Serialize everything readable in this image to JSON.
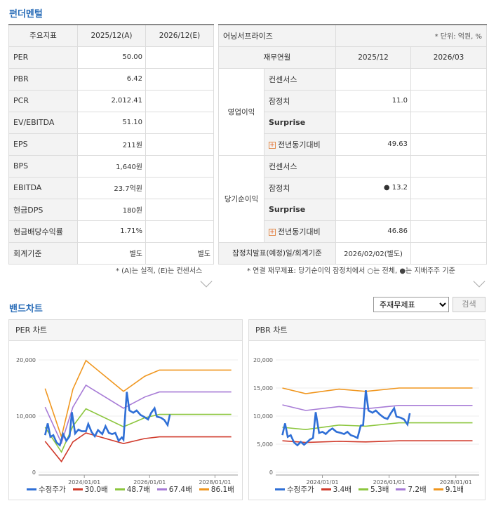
{
  "fundamental": {
    "title": "펀더멘털",
    "headers": [
      "주요지표",
      "2025/12(A)",
      "2026/12(E)"
    ],
    "rows": [
      {
        "label": "PER",
        "a": "50.00",
        "e": ""
      },
      {
        "label": "PBR",
        "a": "6.42",
        "e": ""
      },
      {
        "label": "PCR",
        "a": "2,012.41",
        "e": ""
      },
      {
        "label": "EV/EBITDA",
        "a": "51.10",
        "e": ""
      },
      {
        "label": "EPS",
        "a": "211원",
        "e": ""
      },
      {
        "label": "BPS",
        "a": "1,640원",
        "e": ""
      },
      {
        "label": "EBITDA",
        "a": "23.7억원",
        "e": ""
      },
      {
        "label": "현금DPS",
        "a": "180원",
        "e": ""
      },
      {
        "label": "현금배당수익률",
        "a": "1.71%",
        "e": ""
      },
      {
        "label": "회계기준",
        "a": "별도",
        "e": "별도"
      }
    ],
    "note": "* (A)는 실적, (E)는 컨센서스"
  },
  "earnings": {
    "title": "어닝서프라이즈",
    "unit": "* 단위: 억원, %",
    "headers": [
      "재무연월",
      "2025/12",
      "2026/03"
    ],
    "op_label": "영업이익",
    "net_label": "당기순이익",
    "op_rows": [
      {
        "label": "컨센서스",
        "v1": "",
        "v2": ""
      },
      {
        "label": "잠정치",
        "v1": "11.0",
        "v2": ""
      },
      {
        "label": "Surprise",
        "v1": "",
        "v2": ""
      },
      {
        "label": "전년동기대비",
        "v1": "49.63",
        "v2": ""
      }
    ],
    "net_rows": [
      {
        "label": "컨센서스",
        "v1": "",
        "v2": ""
      },
      {
        "label": "잠정치",
        "v1": "● 13.2",
        "v2": ""
      },
      {
        "label": "Surprise",
        "v1": "",
        "v2": ""
      },
      {
        "label": "전년동기대비",
        "v1": "46.86",
        "v2": ""
      }
    ],
    "footer_label": "잠정치발표(예정)일/회계기준",
    "footer_value": "2026/02/02(별도)",
    "note": "* 연결 재무제표: 당기순이익 잠정치에서 ○는 전체, ●는 지배주주 기준"
  },
  "band": {
    "title": "밴드차트",
    "select_value": "주재무제표",
    "search_label": "검색"
  },
  "chart_data": [
    {
      "type": "line",
      "title": "PER 차트",
      "ylim": [
        0,
        20000
      ],
      "yticks": [
        "0",
        "10,000",
        "20,000"
      ],
      "xticks": [
        "2024/01/01",
        "2026/01/01",
        "2028/01/01"
      ],
      "series": [
        {
          "name": "수정주가",
          "color": "#2f6fd6",
          "points": [
            [
              2022.8,
              6600
            ],
            [
              2022.88,
              8700
            ],
            [
              2022.96,
              6300
            ],
            [
              2023.05,
              6600
            ],
            [
              2023.15,
              5300
            ],
            [
              2023.25,
              4800
            ],
            [
              2023.35,
              6800
            ],
            [
              2023.45,
              5600
            ],
            [
              2023.55,
              6400
            ],
            [
              2023.62,
              10700
            ],
            [
              2023.72,
              6900
            ],
            [
              2023.82,
              7600
            ],
            [
              2023.92,
              7300
            ],
            [
              2024.05,
              7300
            ],
            [
              2024.12,
              8600
            ],
            [
              2024.22,
              7200
            ],
            [
              2024.32,
              6400
            ],
            [
              2024.42,
              7500
            ],
            [
              2024.55,
              6800
            ],
            [
              2024.65,
              8200
            ],
            [
              2024.75,
              7000
            ],
            [
              2024.85,
              6800
            ],
            [
              2024.95,
              7000
            ],
            [
              2025.05,
              5600
            ],
            [
              2025.15,
              6200
            ],
            [
              2025.2,
              5800
            ],
            [
              2025.25,
              10200
            ],
            [
              2025.3,
              14300
            ],
            [
              2025.38,
              11000
            ],
            [
              2025.5,
              10600
            ],
            [
              2025.6,
              11000
            ],
            [
              2025.72,
              10200
            ],
            [
              2025.85,
              9800
            ],
            [
              2025.95,
              9400
            ],
            [
              2026.05,
              10600
            ],
            [
              2026.15,
              11400
            ],
            [
              2026.22,
              9900
            ],
            [
              2026.35,
              9700
            ],
            [
              2026.45,
              9300
            ],
            [
              2026.55,
              8400
            ],
            [
              2026.62,
              10300
            ]
          ]
        },
        {
          "name": "30.0배",
          "color": "#d0392a",
          "points": [
            [
              2022.8,
              5500
            ],
            [
              2023.3,
              1900
            ],
            [
              2023.65,
              5400
            ],
            [
              2024.05,
              7000
            ],
            [
              2025.2,
              5100
            ],
            [
              2025.85,
              6000
            ],
            [
              2026.3,
              6300
            ],
            [
              2028.5,
              6300
            ]
          ]
        },
        {
          "name": "48.7배",
          "color": "#8cc63e",
          "points": [
            [
              2022.8,
              8000
            ],
            [
              2023.3,
              3600
            ],
            [
              2023.65,
              8200
            ],
            [
              2024.05,
              11300
            ],
            [
              2025.2,
              8100
            ],
            [
              2025.85,
              9700
            ],
            [
              2026.3,
              10300
            ],
            [
              2028.5,
              10300
            ]
          ]
        },
        {
          "name": "67.4배",
          "color": "#a77bd6",
          "points": [
            [
              2022.8,
              11600
            ],
            [
              2023.3,
              5200
            ],
            [
              2023.65,
              11600
            ],
            [
              2024.05,
              15500
            ],
            [
              2025.2,
              11400
            ],
            [
              2025.85,
              13400
            ],
            [
              2026.3,
              14300
            ],
            [
              2028.5,
              14300
            ]
          ]
        },
        {
          "name": "86.1배",
          "color": "#f0961e",
          "points": [
            [
              2022.8,
              14900
            ],
            [
              2023.3,
              6300
            ],
            [
              2023.65,
              14800
            ],
            [
              2024.05,
              19900
            ],
            [
              2025.2,
              14400
            ],
            [
              2025.85,
              17100
            ],
            [
              2026.3,
              18200
            ],
            [
              2028.5,
              18200
            ]
          ]
        }
      ]
    },
    {
      "type": "line",
      "title": "PBR 차트",
      "ylim": [
        0,
        20000
      ],
      "yticks": [
        "0",
        "5,000",
        "10,000",
        "15,000",
        "20,000"
      ],
      "xticks": [
        "2024/01/01",
        "2026/01/01",
        "2028/01/01"
      ],
      "series": [
        {
          "name": "수정주가",
          "color": "#2f6fd6",
          "points": [
            [
              2022.8,
              6600
            ],
            [
              2022.88,
              8700
            ],
            [
              2022.96,
              6300
            ],
            [
              2023.05,
              6600
            ],
            [
              2023.15,
              5300
            ],
            [
              2023.25,
              4800
            ],
            [
              2023.35,
              5400
            ],
            [
              2023.45,
              4900
            ],
            [
              2023.55,
              5400
            ],
            [
              2023.62,
              5800
            ],
            [
              2023.72,
              6100
            ],
            [
              2023.8,
              10700
            ],
            [
              2023.9,
              7000
            ],
            [
              2024.0,
              7200
            ],
            [
              2024.1,
              6800
            ],
            [
              2024.2,
              7400
            ],
            [
              2024.3,
              7800
            ],
            [
              2024.42,
              7200
            ],
            [
              2024.55,
              7000
            ],
            [
              2024.65,
              6800
            ],
            [
              2024.75,
              7200
            ],
            [
              2024.85,
              6600
            ],
            [
              2024.95,
              6400
            ],
            [
              2025.05,
              6100
            ],
            [
              2025.15,
              8300
            ],
            [
              2025.22,
              8400
            ],
            [
              2025.3,
              14600
            ],
            [
              2025.38,
              11000
            ],
            [
              2025.5,
              10600
            ],
            [
              2025.6,
              11000
            ],
            [
              2025.72,
              10300
            ],
            [
              2025.85,
              9700
            ],
            [
              2025.95,
              9500
            ],
            [
              2026.05,
              10500
            ],
            [
              2026.15,
              11400
            ],
            [
              2026.22,
              9900
            ],
            [
              2026.35,
              9700
            ],
            [
              2026.45,
              9400
            ],
            [
              2026.55,
              8500
            ],
            [
              2026.62,
              10500
            ]
          ]
        },
        {
          "name": "3.4배",
          "color": "#d0392a",
          "points": [
            [
              2022.8,
              5600
            ],
            [
              2023.5,
              5300
            ],
            [
              2024.5,
              5500
            ],
            [
              2025.3,
              5400
            ],
            [
              2026.3,
              5600
            ],
            [
              2028.5,
              5600
            ]
          ]
        },
        {
          "name": "5.3배",
          "color": "#8cc63e",
          "points": [
            [
              2022.8,
              8000
            ],
            [
              2023.5,
              7600
            ],
            [
              2024.5,
              8400
            ],
            [
              2025.3,
              8200
            ],
            [
              2026.3,
              8800
            ],
            [
              2028.5,
              8800
            ]
          ]
        },
        {
          "name": "7.2배",
          "color": "#a77bd6",
          "points": [
            [
              2022.8,
              12000
            ],
            [
              2023.5,
              11000
            ],
            [
              2024.5,
              11700
            ],
            [
              2025.3,
              11300
            ],
            [
              2026.3,
              11900
            ],
            [
              2028.5,
              11900
            ]
          ]
        },
        {
          "name": "9.1배",
          "color": "#f0961e",
          "points": [
            [
              2022.8,
              15000
            ],
            [
              2023.5,
              14000
            ],
            [
              2024.5,
              14800
            ],
            [
              2025.3,
              14400
            ],
            [
              2026.3,
              15000
            ],
            [
              2028.5,
              15000
            ]
          ]
        }
      ]
    }
  ]
}
